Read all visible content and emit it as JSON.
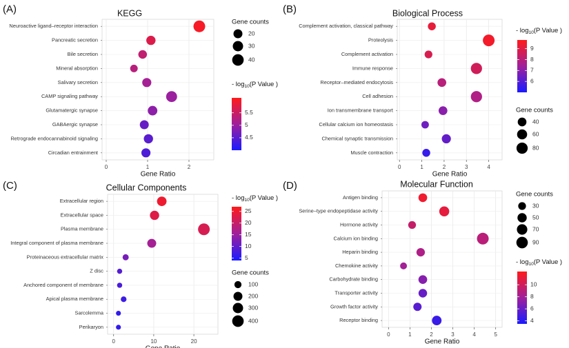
{
  "figure": {
    "panel_tags": [
      "(A)",
      "(B)",
      "(C)",
      "(D)"
    ],
    "legend_text": {
      "size_title": "Gene counts",
      "color_title_prefix": "- log",
      "color_title_sub": "10",
      "color_title_suffix": "(P Value )"
    },
    "gradient_colors": {
      "high": "#ff1a1a",
      "mid": "#a0209a",
      "low": "#1a1aff"
    }
  },
  "chart_data": [
    {
      "type": "scatter",
      "panel": "(A)",
      "title": "KEGG",
      "xlabel": "Gene Ratio",
      "xlim": [
        -0.1,
        2.6
      ],
      "xticks": [
        0,
        1,
        2
      ],
      "categories": [
        "Neuroactive ligand–receptor interaction",
        "Pancreatic secretion",
        "Bile secretion",
        "Mineral absorption",
        "Salivary secretion",
        "CAMP signaling pathway",
        "Glutamatergic synapse",
        "GABAergic synapse",
        "Retrograde endocannabinoid signaling",
        "Circadian entrainment"
      ],
      "x": [
        2.25,
        1.08,
        0.88,
        0.67,
        0.98,
        1.58,
        1.12,
        0.92,
        1.02,
        0.96
      ],
      "gene_counts": [
        42,
        22,
        18,
        12,
        21,
        35,
        24,
        20,
        22,
        21
      ],
      "neg_log10_p": [
        6.0,
        5.7,
        5.4,
        5.3,
        5.1,
        5.0,
        4.9,
        4.6,
        4.5,
        4.4
      ],
      "size_legend": [
        20,
        30,
        40
      ],
      "color_scale": {
        "min": 4.0,
        "max": 6.1,
        "ticks": [
          4.5,
          5.0,
          5.5
        ]
      }
    },
    {
      "type": "scatter",
      "panel": "(B)",
      "title": "Biological Process",
      "xlabel": "Gene Ratio",
      "xlim": [
        -0.1,
        4.6
      ],
      "xticks": [
        0,
        1,
        2,
        3,
        4
      ],
      "categories": [
        "Complement activation, classical pathway",
        "Proteolysis",
        "Complement activation",
        "Immune response",
        "Receptor–mediated endocytosis",
        "Cell adhesion",
        "Ion transmembrane transport",
        "Cellular calcium ion homeostasis",
        "Chemical synaptic transmission",
        "Muscle contraction"
      ],
      "x": [
        1.45,
        4.0,
        1.3,
        3.45,
        1.9,
        3.45,
        1.95,
        1.15,
        2.1,
        1.2
      ],
      "gene_counts": [
        30,
        90,
        28,
        80,
        40,
        80,
        40,
        25,
        45,
        30
      ],
      "neg_log10_p": [
        9.2,
        9.5,
        8.8,
        8.6,
        8.0,
        7.8,
        7.0,
        6.5,
        6.3,
        5.5
      ],
      "size_legend": [
        40,
        60,
        80
      ],
      "color_scale": {
        "min": 5.0,
        "max": 9.8,
        "ticks": [
          6,
          7,
          8,
          9
        ]
      }
    },
    {
      "type": "scatter",
      "panel": "(C)",
      "title": "Cellular Components",
      "xlabel": "Gene Ratio",
      "xlim": [
        -1.5,
        26
      ],
      "xticks": [
        0,
        10,
        20
      ],
      "categories": [
        "Extracellular region",
        "Extracellular space",
        "Plasma membrane",
        "Integral component of plasma membrane",
        "Proteinaceous extracellular matrix",
        "Z disc",
        "Anchored component of membrane",
        "Apical plasma membrane",
        "Sarcolemma",
        "Perikaryon"
      ],
      "x": [
        12.0,
        10.2,
        22.5,
        9.5,
        3.0,
        1.5,
        1.5,
        2.5,
        1.2,
        1.2
      ],
      "gene_counts": [
        240,
        220,
        420,
        200,
        60,
        30,
        30,
        45,
        25,
        25
      ],
      "neg_log10_p": [
        25,
        23,
        22,
        16,
        12,
        9,
        8,
        7,
        6,
        6
      ],
      "size_legend": [
        100,
        200,
        300,
        400
      ],
      "color_scale": {
        "min": 4,
        "max": 27,
        "ticks": [
          5,
          10,
          15,
          20,
          25
        ]
      }
    },
    {
      "type": "scatter",
      "panel": "(D)",
      "title": "Molecular Function",
      "xlabel": "Gene Ratio",
      "xlim": [
        -0.3,
        5.3
      ],
      "xticks": [
        0,
        1,
        2,
        3,
        4,
        5
      ],
      "categories": [
        "Antigen binding",
        "Serine–type endopeptidase activity",
        "Hormone activity",
        "Calcium ion binding",
        "Heparin binding",
        "Chemokine activity",
        "Carbohydrate binding",
        "Transporter activity",
        "Growth factor activity",
        "Receptor binding"
      ],
      "x": [
        1.6,
        2.6,
        1.1,
        4.4,
        1.5,
        0.7,
        1.6,
        1.6,
        1.35,
        2.25
      ],
      "gene_counts": [
        42,
        62,
        30,
        95,
        38,
        20,
        42,
        40,
        36,
        55
      ],
      "neg_log10_p": [
        11.5,
        11.0,
        9.5,
        9.0,
        8.5,
        8.0,
        7.0,
        6.0,
        5.5,
        4.5
      ],
      "size_legend": [
        30,
        50,
        70,
        90
      ],
      "color_scale": {
        "min": 3.5,
        "max": 12.2,
        "ticks": [
          4,
          6,
          8,
          10
        ]
      }
    }
  ]
}
